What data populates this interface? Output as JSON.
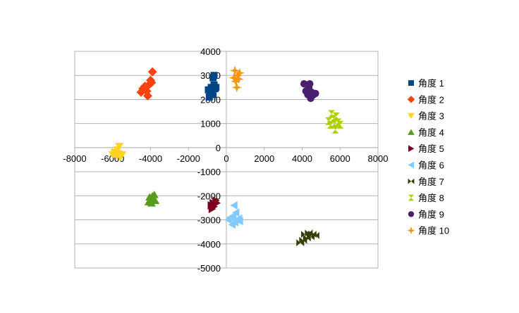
{
  "chart_data": {
    "type": "scatter",
    "title": "",
    "xlabel": "",
    "ylabel": "",
    "xlim": [
      -8000,
      8000
    ],
    "ylim": [
      -5000,
      4000
    ],
    "x_ticks": [
      "-8000",
      "-6000",
      "-4000",
      "-2000",
      "0",
      "2000",
      "4000",
      "6000",
      "8000"
    ],
    "y_ticks": [
      "4000",
      "3000",
      "2000",
      "1000",
      "0",
      "-1000",
      "-2000",
      "-3000",
      "-4000",
      "-5000"
    ],
    "grid": "horizontal",
    "legend_position": "right",
    "series": [
      {
        "name": "角度 1",
        "color": "#004586",
        "marker": "square",
        "points": [
          [
            -950,
            2400
          ],
          [
            -900,
            2100
          ],
          [
            -850,
            2250
          ],
          [
            -800,
            2500
          ],
          [
            -750,
            2350
          ],
          [
            -700,
            2200
          ],
          [
            -650,
            2600
          ],
          [
            -600,
            2450
          ],
          [
            -700,
            2900
          ],
          [
            -650,
            3000
          ],
          [
            -550,
            2500
          ]
        ]
      },
      {
        "name": "角度 2",
        "color": "#ff420e",
        "marker": "diamond",
        "points": [
          [
            -4500,
            2300
          ],
          [
            -4400,
            2450
          ],
          [
            -4300,
            2550
          ],
          [
            -4200,
            2350
          ],
          [
            -4150,
            2150
          ],
          [
            -4100,
            2600
          ],
          [
            -4000,
            2800
          ],
          [
            -3950,
            2700
          ],
          [
            -3900,
            3150
          ]
        ]
      },
      {
        "name": "角度 3",
        "color": "#ffd320",
        "marker": "triangle-down",
        "points": [
          [
            -6000,
            -300
          ],
          [
            -5900,
            -200
          ],
          [
            -5800,
            -350
          ],
          [
            -5750,
            -100
          ],
          [
            -5700,
            -250
          ],
          [
            -5650,
            50
          ],
          [
            -5600,
            -400
          ],
          [
            -5500,
            -300
          ]
        ]
      },
      {
        "name": "角度 4",
        "color": "#579d1c",
        "marker": "triangle-up",
        "points": [
          [
            -4100,
            -2250
          ],
          [
            -4050,
            -2050
          ],
          [
            -4000,
            -2150
          ],
          [
            -3950,
            -2300
          ],
          [
            -3900,
            -2000
          ],
          [
            -3850,
            -2100
          ],
          [
            -3800,
            -1950
          ],
          [
            -3750,
            -2200
          ]
        ]
      },
      {
        "name": "角度 5",
        "color": "#7e0021",
        "marker": "triangle-right",
        "points": [
          [
            -800,
            -2400
          ],
          [
            -750,
            -2550
          ],
          [
            -700,
            -2300
          ],
          [
            -650,
            -2450
          ],
          [
            -600,
            -2350
          ],
          [
            -550,
            -2200
          ],
          [
            -500,
            -2300
          ]
        ]
      },
      {
        "name": "角度 6",
        "color": "#83caff",
        "marker": "triangle-left",
        "points": [
          [
            100,
            -3000
          ],
          [
            200,
            -2900
          ],
          [
            300,
            -3200
          ],
          [
            350,
            -2850
          ],
          [
            400,
            -2400
          ],
          [
            450,
            -3100
          ],
          [
            500,
            -2700
          ],
          [
            550,
            -3000
          ],
          [
            650,
            -2950
          ],
          [
            700,
            -3050
          ]
        ]
      },
      {
        "name": "角度 7",
        "color": "#314004",
        "marker": "bowtie",
        "points": [
          [
            3900,
            -3950
          ],
          [
            4050,
            -3850
          ],
          [
            4150,
            -3600
          ],
          [
            4250,
            -3750
          ],
          [
            4350,
            -3550
          ],
          [
            4450,
            -3700
          ],
          [
            4550,
            -3600
          ],
          [
            4700,
            -3650
          ]
        ]
      },
      {
        "name": "角度 8",
        "color": "#aecf00",
        "marker": "hourglass",
        "points": [
          [
            5400,
            1100
          ],
          [
            5500,
            950
          ],
          [
            5550,
            1400
          ],
          [
            5650,
            1200
          ],
          [
            5700,
            1000
          ],
          [
            5750,
            750
          ],
          [
            5800,
            1300
          ],
          [
            5900,
            1050
          ],
          [
            6000,
            950
          ]
        ]
      },
      {
        "name": "角度 9",
        "color": "#4b1f6f",
        "marker": "circle",
        "points": [
          [
            4100,
            2650
          ],
          [
            4200,
            2350
          ],
          [
            4300,
            2200
          ],
          [
            4350,
            2500
          ],
          [
            4400,
            2650
          ],
          [
            4450,
            2050
          ],
          [
            4500,
            2300
          ],
          [
            4600,
            2200
          ],
          [
            4700,
            2250
          ]
        ]
      },
      {
        "name": "角度 10",
        "color": "#ff950e",
        "marker": "star",
        "points": [
          [
            400,
            2900
          ],
          [
            450,
            3200
          ],
          [
            500,
            2750
          ],
          [
            550,
            2500
          ],
          [
            600,
            3000
          ],
          [
            650,
            2850
          ],
          [
            700,
            3100
          ]
        ]
      }
    ]
  }
}
